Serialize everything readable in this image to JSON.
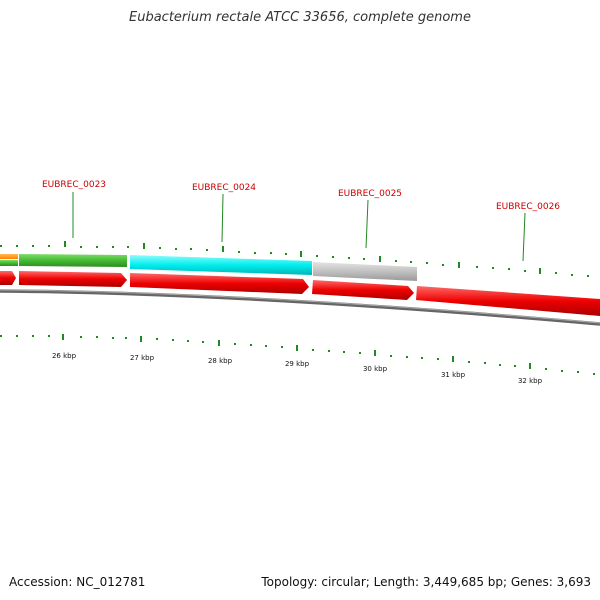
{
  "title": "Eubacterium rectale ATCC 33656, complete genome",
  "accession": "Accession: NC_012781",
  "summary": "Topology: circular; Length: 3,449,685 bp; Genes: 3,693",
  "gene_labels": [
    {
      "name": "EUBREC_0023",
      "color": "#cc0000"
    },
    {
      "name": "EUBREC_0024",
      "color": "#cc0000"
    },
    {
      "name": "EUBREC_0025",
      "color": "#cc0000"
    },
    {
      "name": "EUBREC_0026",
      "color": "#cc0000"
    }
  ],
  "kbp_labels": [
    "26 kbp",
    "27 kbp",
    "28 kbp",
    "29 kbp",
    "30 kbp",
    "31 kbp",
    "32 kbp"
  ],
  "colors": {
    "forward_green": "#44bb33",
    "forward_cyan": "#00eeee",
    "forward_gray": "#c0c0c0",
    "orange": "#ff8c00",
    "reverse_red": "#ee0000",
    "backbone": "#777777",
    "tick": "#228822"
  }
}
